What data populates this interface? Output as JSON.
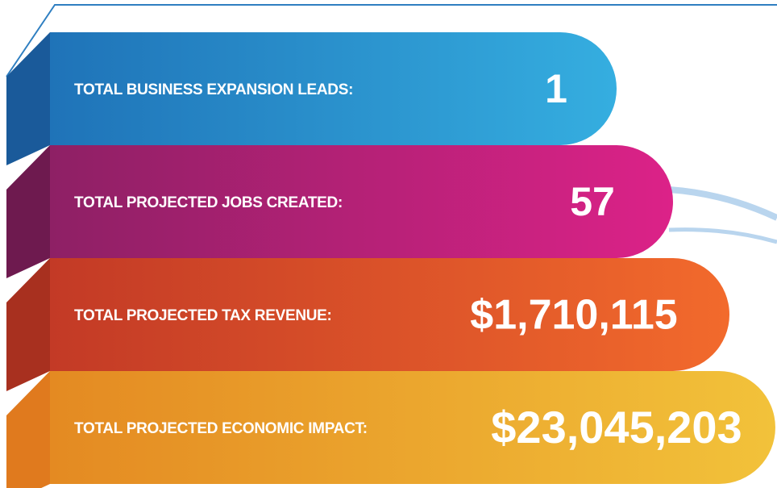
{
  "items": [
    {
      "label": "TOTAL BUSINESS EXPANSION LEADS:",
      "value": "1"
    },
    {
      "label": "TOTAL PROJECTED JOBS CREATED:",
      "value": "57"
    },
    {
      "label": "TOTAL PROJECTED TAX REVENUE:",
      "value": "$1,710,115"
    },
    {
      "label": "TOTAL PROJECTED ECONOMIC IMPACT:",
      "value": "$23,045,203"
    }
  ]
}
